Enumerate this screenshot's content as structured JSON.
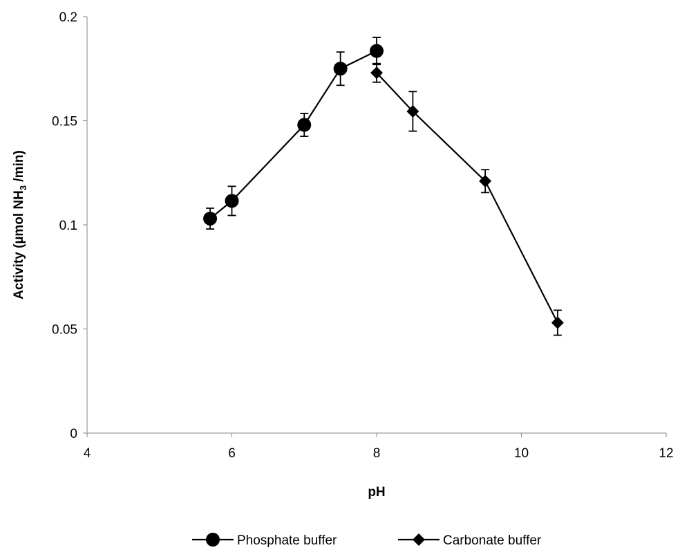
{
  "chart_data": {
    "type": "line",
    "xlabel": "pH",
    "ylabel_main": "Activity (µmol NH",
    "ylabel_sub": "3",
    "ylabel_tail": " /min)",
    "xlim": [
      4,
      12
    ],
    "ylim": [
      0,
      0.2
    ],
    "x_ticks": [
      4,
      6,
      8,
      10,
      12
    ],
    "y_ticks": [
      0,
      0.05,
      0.1,
      0.15,
      0.2
    ],
    "x_tick_labels": [
      "4",
      "6",
      "8",
      "10",
      "12"
    ],
    "y_tick_labels": [
      "0",
      "0.05",
      "0.1",
      "0.15",
      "0.2"
    ],
    "grid": false,
    "legend_position": "bottom",
    "series": [
      {
        "name": "Phosphate buffer",
        "marker": "circle",
        "color": "#000000",
        "x": [
          5.7,
          6.0,
          7.0,
          7.5,
          8.0
        ],
        "y": [
          0.103,
          0.1115,
          0.148,
          0.175,
          0.1835
        ],
        "err": [
          0.005,
          0.007,
          0.0055,
          0.008,
          0.0065
        ]
      },
      {
        "name": "Carbonate buffer",
        "marker": "diamond",
        "color": "#000000",
        "x": [
          8.0,
          8.5,
          9.5,
          10.5
        ],
        "y": [
          0.173,
          0.1545,
          0.121,
          0.053
        ],
        "err": [
          0.0045,
          0.0095,
          0.0055,
          0.006
        ]
      }
    ]
  }
}
